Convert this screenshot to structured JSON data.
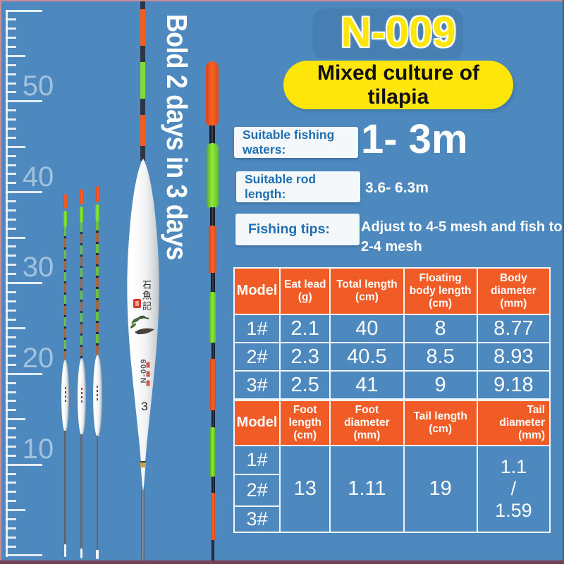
{
  "colors": {
    "background_blue": "#4d89be",
    "accent_orange": "#f15b26",
    "accent_yellow": "#ffe60a",
    "accent_green": "#8ae63a",
    "label_blue": "#1f6fb2",
    "text_white": "#ffffff"
  },
  "ruler": {
    "labels": [
      "50",
      "40",
      "30",
      "20",
      "10"
    ]
  },
  "banner_vertical": "Bold 2 days in 3 days",
  "header": {
    "title": "N-009",
    "subtitle": "Mixed culture of\ntilapia"
  },
  "info_rows": [
    {
      "label": "Suitable fishing waters:",
      "value": "1- 3m"
    },
    {
      "label": "Suitable rod length:",
      "value": "3.6- 6.3m"
    },
    {
      "label": "Fishing tips:",
      "value": "Adjust to 4-5 mesh and fish to\n2-4 mesh"
    }
  ],
  "float_markings": {
    "brand": "石魚記",
    "model": "N-009",
    "size": "3"
  },
  "spec_table_1": {
    "headers": [
      "Model",
      "Eat lead (g)",
      "Total length (cm)",
      "Floating body length (cm)",
      "Body diameter (mm)"
    ],
    "rows": [
      [
        "1#",
        "2.1",
        "40",
        "8",
        "8.77"
      ],
      [
        "2#",
        "2.3",
        "40.5",
        "8.5",
        "8.93"
      ],
      [
        "3#",
        "2.5",
        "41",
        "9",
        "9.18"
      ]
    ]
  },
  "spec_table_2": {
    "headers": [
      "Model",
      "Foot length (cm)",
      "Foot diameter (mm)",
      "Tail length (cm)",
      "Tail diameter (mm)"
    ],
    "model_rows": [
      "1#",
      "2#",
      "3#"
    ],
    "values": {
      "foot_length": "13",
      "foot_diameter": "1.11",
      "tail_length": "19",
      "tail_diameter": "1.1\n/\n1.59"
    }
  }
}
